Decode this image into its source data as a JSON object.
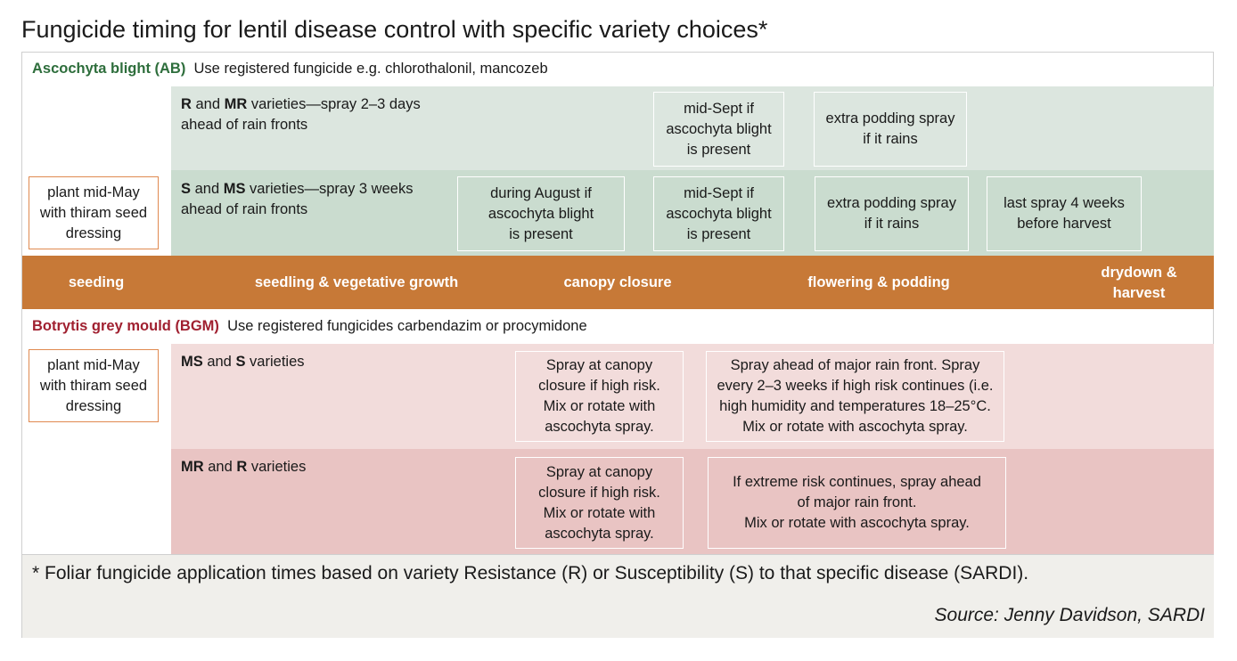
{
  "title": "Fungicide timing for lentil disease control with specific variety choices*",
  "ascochyta": {
    "name": "Ascochyta blight (AB)",
    "note": "Use registered fungicide e.g. chlorothalonil, mancozeb",
    "plant_box": [
      "plant mid-May",
      "with thiram seed",
      "dressing"
    ],
    "row_r_mr": {
      "label_b1": "R",
      "label_and": " and ",
      "label_b2": "MR",
      "label_rest": " varieties—spray 2–3 days",
      "label_line2": "ahead of rain fronts",
      "boxes": [
        [
          "mid-Sept if",
          "ascochyta blight",
          "is present"
        ],
        [
          "extra podding spray",
          "if it rains"
        ]
      ]
    },
    "row_s_ms": {
      "label_b1": "S",
      "label_and": " and ",
      "label_b2": "MS",
      "label_rest": " varieties—spray 3 weeks",
      "label_line2": "ahead of rain fronts",
      "boxes": [
        [
          "during August if",
          "ascochyta blight",
          "is present"
        ],
        [
          "mid-Sept if",
          "ascochyta blight",
          "is present"
        ],
        [
          "extra podding spray",
          "if it rains"
        ],
        [
          "last spray 4 weeks",
          "before harvest"
        ]
      ]
    }
  },
  "stages": [
    "seeding",
    "seedling & vegetative growth",
    "canopy closure",
    "flowering & podding",
    [
      "drydown &",
      "harvest"
    ]
  ],
  "botrytis": {
    "name": "Botrytis grey mould (BGM)",
    "note": "Use registered fungicides carbendazim or procymidone",
    "plant_box": [
      "plant mid-May",
      "with thiram seed",
      "dressing"
    ],
    "row_ms_s": {
      "label_b1": "MS",
      "label_and": " and ",
      "label_b2": "S",
      "label_rest": " varieties",
      "boxes": [
        [
          "Spray at canopy",
          "closure if high risk.",
          "Mix or rotate with",
          "ascochyta spray."
        ],
        [
          "Spray ahead of major rain front. Spray",
          "every 2–3 weeks if high risk continues (i.e.",
          "high humidity and temperatures 18–25°C.",
          "Mix or rotate with ascochyta spray."
        ]
      ]
    },
    "row_mr_r": {
      "label_b1": "MR",
      "label_and": " and ",
      "label_b2": "R",
      "label_rest": " varieties",
      "boxes": [
        [
          "Spray at canopy",
          "closure if high risk.",
          "Mix or rotate with",
          "ascochyta spray."
        ],
        [
          "If extreme risk continues, spray ahead",
          "of major rain front.",
          "Mix or rotate with ascochyta spray."
        ]
      ]
    }
  },
  "footnote": "* Foliar fungicide application times based on variety Resistance (R) or Susceptibility (S) to that specific disease (SARDI).",
  "source": "Source: Jenny Davidson, SARDI",
  "colors": {
    "ab_header": "#2e6e3c",
    "bgm_header": "#a02030",
    "stage_bar": "#c77937",
    "ab_band_light": "#dce6df",
    "ab_band_dark": "#cadccf",
    "bgm_band_light": "#f2dcdb",
    "bgm_band_dark": "#e9c4c3",
    "plant_box_border": "#e08a50"
  }
}
